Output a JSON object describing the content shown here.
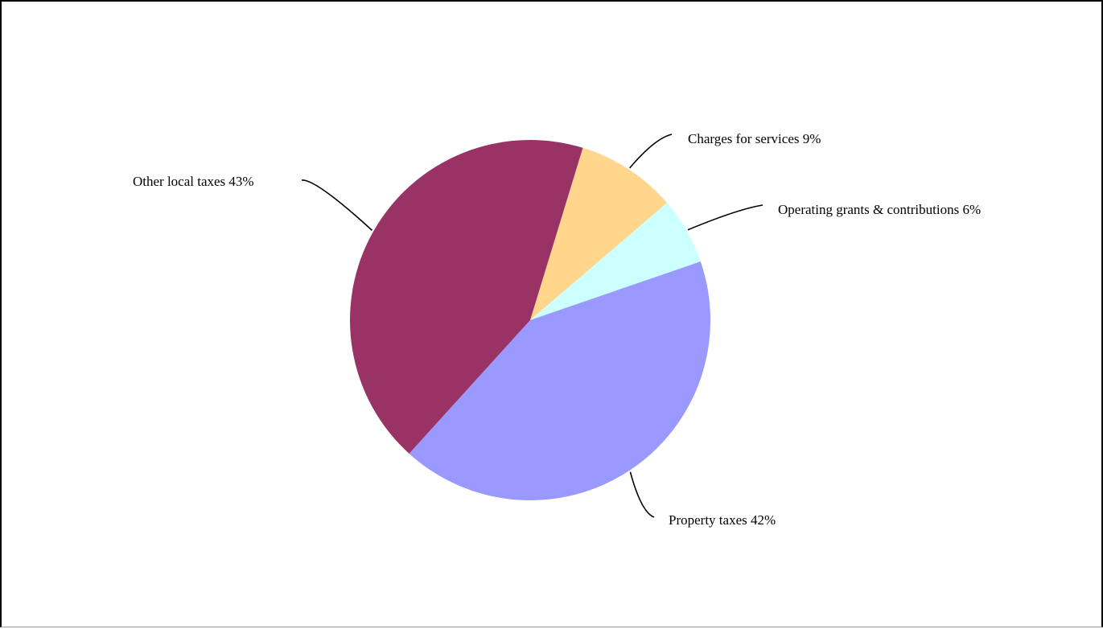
{
  "chart_data": {
    "type": "pie",
    "title": "",
    "slices": [
      {
        "label": "Charges for services 9%",
        "category": "Charges for services",
        "value": 9,
        "color": "#FFD68B"
      },
      {
        "label": "Operating grants & contributions 6%",
        "category": "Operating grants & contributions",
        "value": 6,
        "color": "#CCFFFF"
      },
      {
        "label": "Property taxes 42%",
        "category": "Property taxes",
        "value": 42,
        "color": "#9999FF"
      },
      {
        "label": "Other local taxes 43%",
        "category": "Other local taxes",
        "value": 43,
        "color": "#993366"
      }
    ],
    "start_angle_deg": -73,
    "direction": "clockwise",
    "legend": "none",
    "data_labels": "outside with leader lines"
  }
}
